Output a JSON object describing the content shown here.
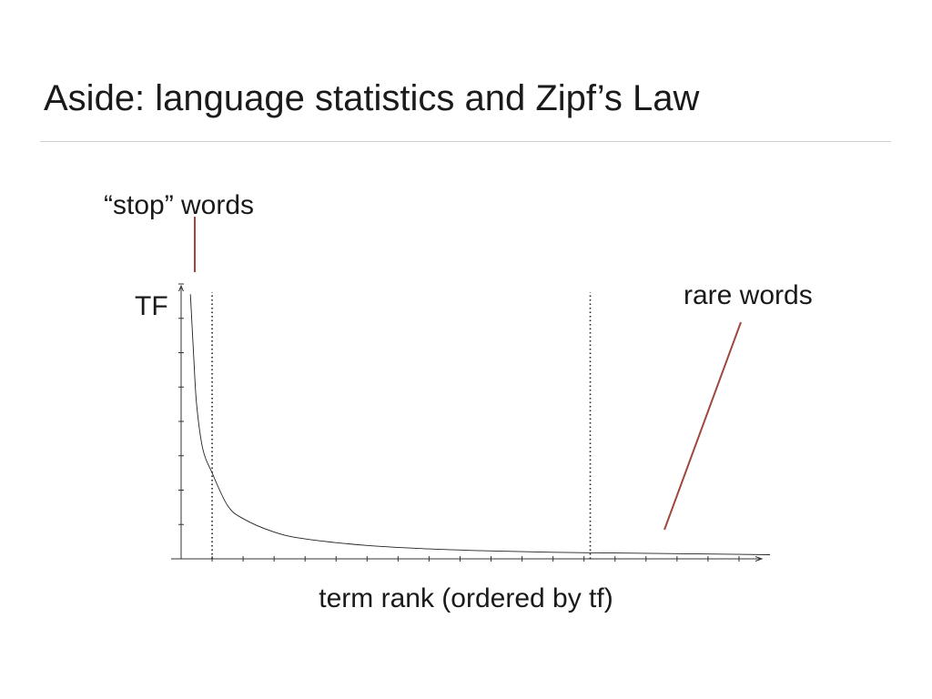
{
  "slide": {
    "title": "Aside: language statistics and Zipf’s Law"
  },
  "colors": {
    "annotation": "#a0463c",
    "curve": "#222222",
    "axis": "#333333",
    "rule": "#cfcfcf"
  },
  "chart_data": {
    "type": "line",
    "title": "",
    "xlabel": "term rank (ordered by tf)",
    "ylabel": "TF",
    "xlim": [
      0,
      19
    ],
    "ylim": [
      0,
      8
    ],
    "x_ticks": [
      1,
      2,
      3,
      4,
      5,
      6,
      7,
      8,
      9,
      10,
      11,
      12,
      13,
      14,
      15,
      16,
      17,
      18
    ],
    "y_ticks": [
      1,
      2,
      3,
      4,
      5,
      6,
      7,
      8
    ],
    "tick_labels_shown": false,
    "grid": false,
    "series": [
      {
        "x": [
          0.3,
          0.4,
          0.5,
          0.7,
          1.0,
          1.5,
          2.0,
          3.0,
          4.0,
          6.0,
          8.0,
          10.0,
          12.0,
          14.0,
          16.0,
          18.0,
          19.0
        ],
        "y": [
          7.7,
          6.0,
          4.5,
          3.2,
          2.5,
          1.55,
          1.17,
          0.78,
          0.58,
          0.39,
          0.29,
          0.23,
          0.19,
          0.17,
          0.15,
          0.13,
          0.12
        ]
      }
    ],
    "cutoff_lines_x": [
      1.0,
      13.2
    ],
    "annotations": [
      {
        "id": "stop",
        "text": "“stop” words"
      },
      {
        "id": "rare",
        "text": "rare words"
      }
    ]
  }
}
